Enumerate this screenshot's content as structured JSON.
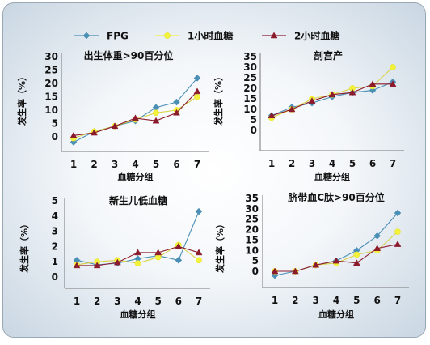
{
  "legend": {
    "items": [
      {
        "label": "FPG",
        "color": "#4a8fb5",
        "marker": "diamond"
      },
      {
        "label": "1小时血糖",
        "color": "#f2f23a",
        "marker": "circle"
      },
      {
        "label": "2小时血糖",
        "color": "#8b1a2c",
        "marker": "triangle"
      }
    ]
  },
  "chart_data": [
    {
      "type": "line",
      "title": "出生体重>90百分位",
      "xlabel": "血糖分组",
      "ylabel": "发生率（%）",
      "x": [
        1,
        2,
        3,
        4,
        5,
        6,
        7
      ],
      "yticks": [
        0,
        5,
        10,
        15,
        20,
        25,
        30
      ],
      "ylim": [
        -3,
        30
      ],
      "series": [
        {
          "name": "FPG",
          "values": [
            -2,
            2,
            4,
            6,
            11,
            13,
            22
          ]
        },
        {
          "name": "1小时血糖",
          "values": [
            -0.5,
            2,
            4,
            6.5,
            9,
            10,
            15
          ]
        },
        {
          "name": "2小时血糖",
          "values": [
            0.5,
            1.5,
            4,
            7,
            6,
            9,
            17
          ]
        }
      ]
    },
    {
      "type": "line",
      "title": "剖宫产",
      "xlabel": "血糖分组",
      "ylabel": "发生率（%）",
      "x": [
        1,
        2,
        3,
        4,
        5,
        6,
        7
      ],
      "yticks": [
        0,
        5,
        10,
        15,
        20,
        25,
        30,
        35
      ],
      "ylim": [
        -3,
        35
      ],
      "series": [
        {
          "name": "FPG",
          "values": [
            7,
            11,
            13,
            16,
            18,
            19,
            23
          ]
        },
        {
          "name": "1小时血糖",
          "values": [
            6,
            10,
            15,
            17,
            20,
            21,
            30
          ]
        },
        {
          "name": "2小时血糖",
          "values": [
            7,
            10,
            14,
            17,
            18,
            22,
            22
          ]
        }
      ]
    },
    {
      "type": "line",
      "title": "新生儿低血糖",
      "xlabel": "血糖分组",
      "ylabel": "发生率（%）",
      "x": [
        1,
        2,
        3,
        4,
        5,
        6,
        7
      ],
      "yticks": [
        0,
        1,
        2,
        3,
        4,
        5
      ],
      "ylim": [
        -0.7,
        5
      ],
      "series": [
        {
          "name": "FPG",
          "values": [
            1.1,
            0.8,
            0.9,
            1.2,
            1.4,
            1.1,
            4.3
          ]
        },
        {
          "name": "1小时血糖",
          "values": [
            0.8,
            1.0,
            1.1,
            0.9,
            1.3,
            2.1,
            1.1
          ]
        },
        {
          "name": "2小时血糖",
          "values": [
            0.75,
            0.75,
            0.95,
            1.6,
            1.6,
            2.0,
            1.6
          ]
        }
      ]
    },
    {
      "type": "line",
      "title": "脐带血C肽>90百分位",
      "xlabel": "血糖分组",
      "ylabel": "发生率（%）",
      "x": [
        1,
        2,
        3,
        4,
        5,
        6,
        7
      ],
      "yticks": [
        0,
        5,
        10,
        15,
        20,
        25,
        30,
        35
      ],
      "ylim": [
        -3,
        35
      ],
      "series": [
        {
          "name": "FPG",
          "values": [
            -2,
            0,
            3,
            5,
            10,
            17,
            28
          ]
        },
        {
          "name": "1小时血糖",
          "values": [
            0,
            0,
            3,
            4,
            8,
            10,
            19
          ]
        },
        {
          "name": "2小时血糖",
          "values": [
            0,
            0,
            3,
            5,
            4,
            11,
            13
          ]
        }
      ]
    }
  ]
}
